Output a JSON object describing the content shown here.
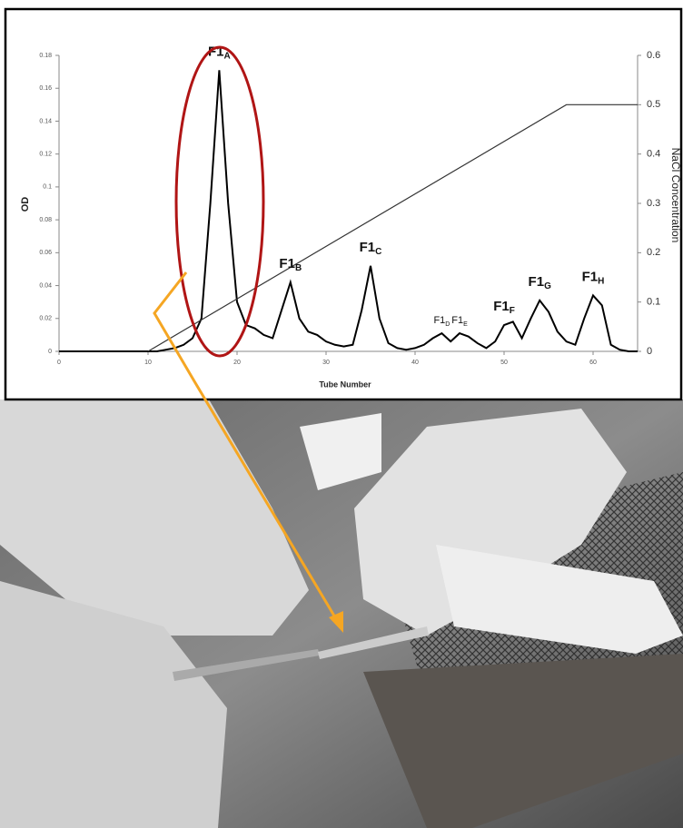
{
  "chart_data": {
    "type": "line",
    "xlabel": "Tube Number",
    "ylabel": "OD",
    "y2label": "NaCl Concentration",
    "x": [
      0,
      1,
      2,
      3,
      4,
      5,
      6,
      7,
      8,
      9,
      10,
      11,
      12,
      13,
      14,
      15,
      16,
      17,
      18,
      19,
      20,
      21,
      22,
      23,
      24,
      25,
      26,
      27,
      28,
      29,
      30,
      31,
      32,
      33,
      34,
      35,
      36,
      37,
      38,
      39,
      40,
      41,
      42,
      43,
      44,
      45,
      46,
      47,
      48,
      49,
      50,
      51,
      52,
      53,
      54,
      55,
      56,
      57,
      58,
      59,
      60,
      61,
      62,
      63,
      64,
      65
    ],
    "series": [
      {
        "color": "#000000",
        "values": [
          0,
          0,
          0,
          0,
          0,
          0,
          0,
          0,
          0,
          0,
          0,
          0,
          0.001,
          0.002,
          0.004,
          0.008,
          0.02,
          0.09,
          0.171,
          0.09,
          0.03,
          0.016,
          0.014,
          0.01,
          0.008,
          0.025,
          0.042,
          0.02,
          0.012,
          0.01,
          0.006,
          0.004,
          0.003,
          0.004,
          0.025,
          0.052,
          0.02,
          0.005,
          0.002,
          0.001,
          0.002,
          0.004,
          0.008,
          0.011,
          0.006,
          0.011,
          0.009,
          0.005,
          0.002,
          0.006,
          0.016,
          0.018,
          0.008,
          0.02,
          0.031,
          0.024,
          0.012,
          0.006,
          0.004,
          0.02,
          0.034,
          0.028,
          0.004,
          0.001,
          0,
          0
        ]
      },
      {
        "color": "#333333",
        "axis": "y2",
        "x": [
          10,
          57,
          65
        ],
        "values": [
          0,
          0.5,
          0.5
        ]
      }
    ],
    "annotations": [
      {
        "text": "F1",
        "sub": "A",
        "x": 18
      },
      {
        "text": "F1",
        "sub": "B",
        "x": 26
      },
      {
        "text": "F1",
        "sub": "C",
        "x": 35
      },
      {
        "text": "F1",
        "sub": "D",
        "x": 43
      },
      {
        "text": "F1",
        "sub": "E",
        "x": 45
      },
      {
        "text": "F1",
        "sub": "F",
        "x": 50
      },
      {
        "text": "F1",
        "sub": "G",
        "x": 54
      },
      {
        "text": "F1",
        "sub": "H",
        "x": 60
      }
    ],
    "xlim": [
      0,
      65
    ],
    "xticks": [
      0,
      10,
      20,
      30,
      40,
      50,
      60
    ],
    "ylim": [
      0,
      0.18
    ],
    "yticks": [
      0,
      0.02,
      0.04,
      0.06,
      0.08,
      0.1,
      0.12,
      0.14,
      0.16,
      0.18
    ],
    "y2lim": [
      0,
      0.6
    ],
    "y2ticks": [
      0,
      0.1,
      0.2,
      0.3,
      0.4,
      0.5,
      0.6
    ]
  }
}
